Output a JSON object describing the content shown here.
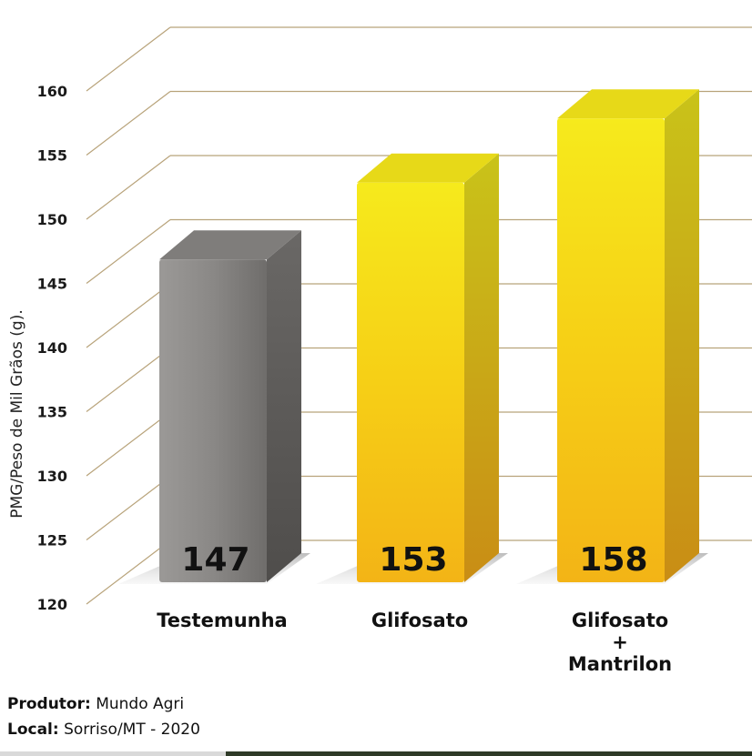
{
  "chart_data": {
    "type": "bar",
    "categories": [
      [
        "Testemunha"
      ],
      [
        "Glifosato"
      ],
      [
        "Glifosato",
        "+",
        "Mantrilon"
      ]
    ],
    "values": [
      147,
      153,
      158
    ],
    "data_labels": [
      "147",
      "153",
      "158"
    ],
    "ylabel": "PMG/Peso de Mil Grãos (g).",
    "ylim": [
      120,
      160
    ],
    "yticks": [
      120,
      125,
      130,
      135,
      140,
      145,
      150,
      155,
      160
    ],
    "grid": true,
    "colors": {
      "gridline": "#b8a37a",
      "control_bar": "#8e8c8a",
      "treatment_bar": "#f4c21a"
    }
  },
  "footer": {
    "producer_label": "Produtor:",
    "producer_value": " Mundo Agri",
    "location_label": "Local:",
    "location_value": " Sorriso/MT - 2020"
  }
}
